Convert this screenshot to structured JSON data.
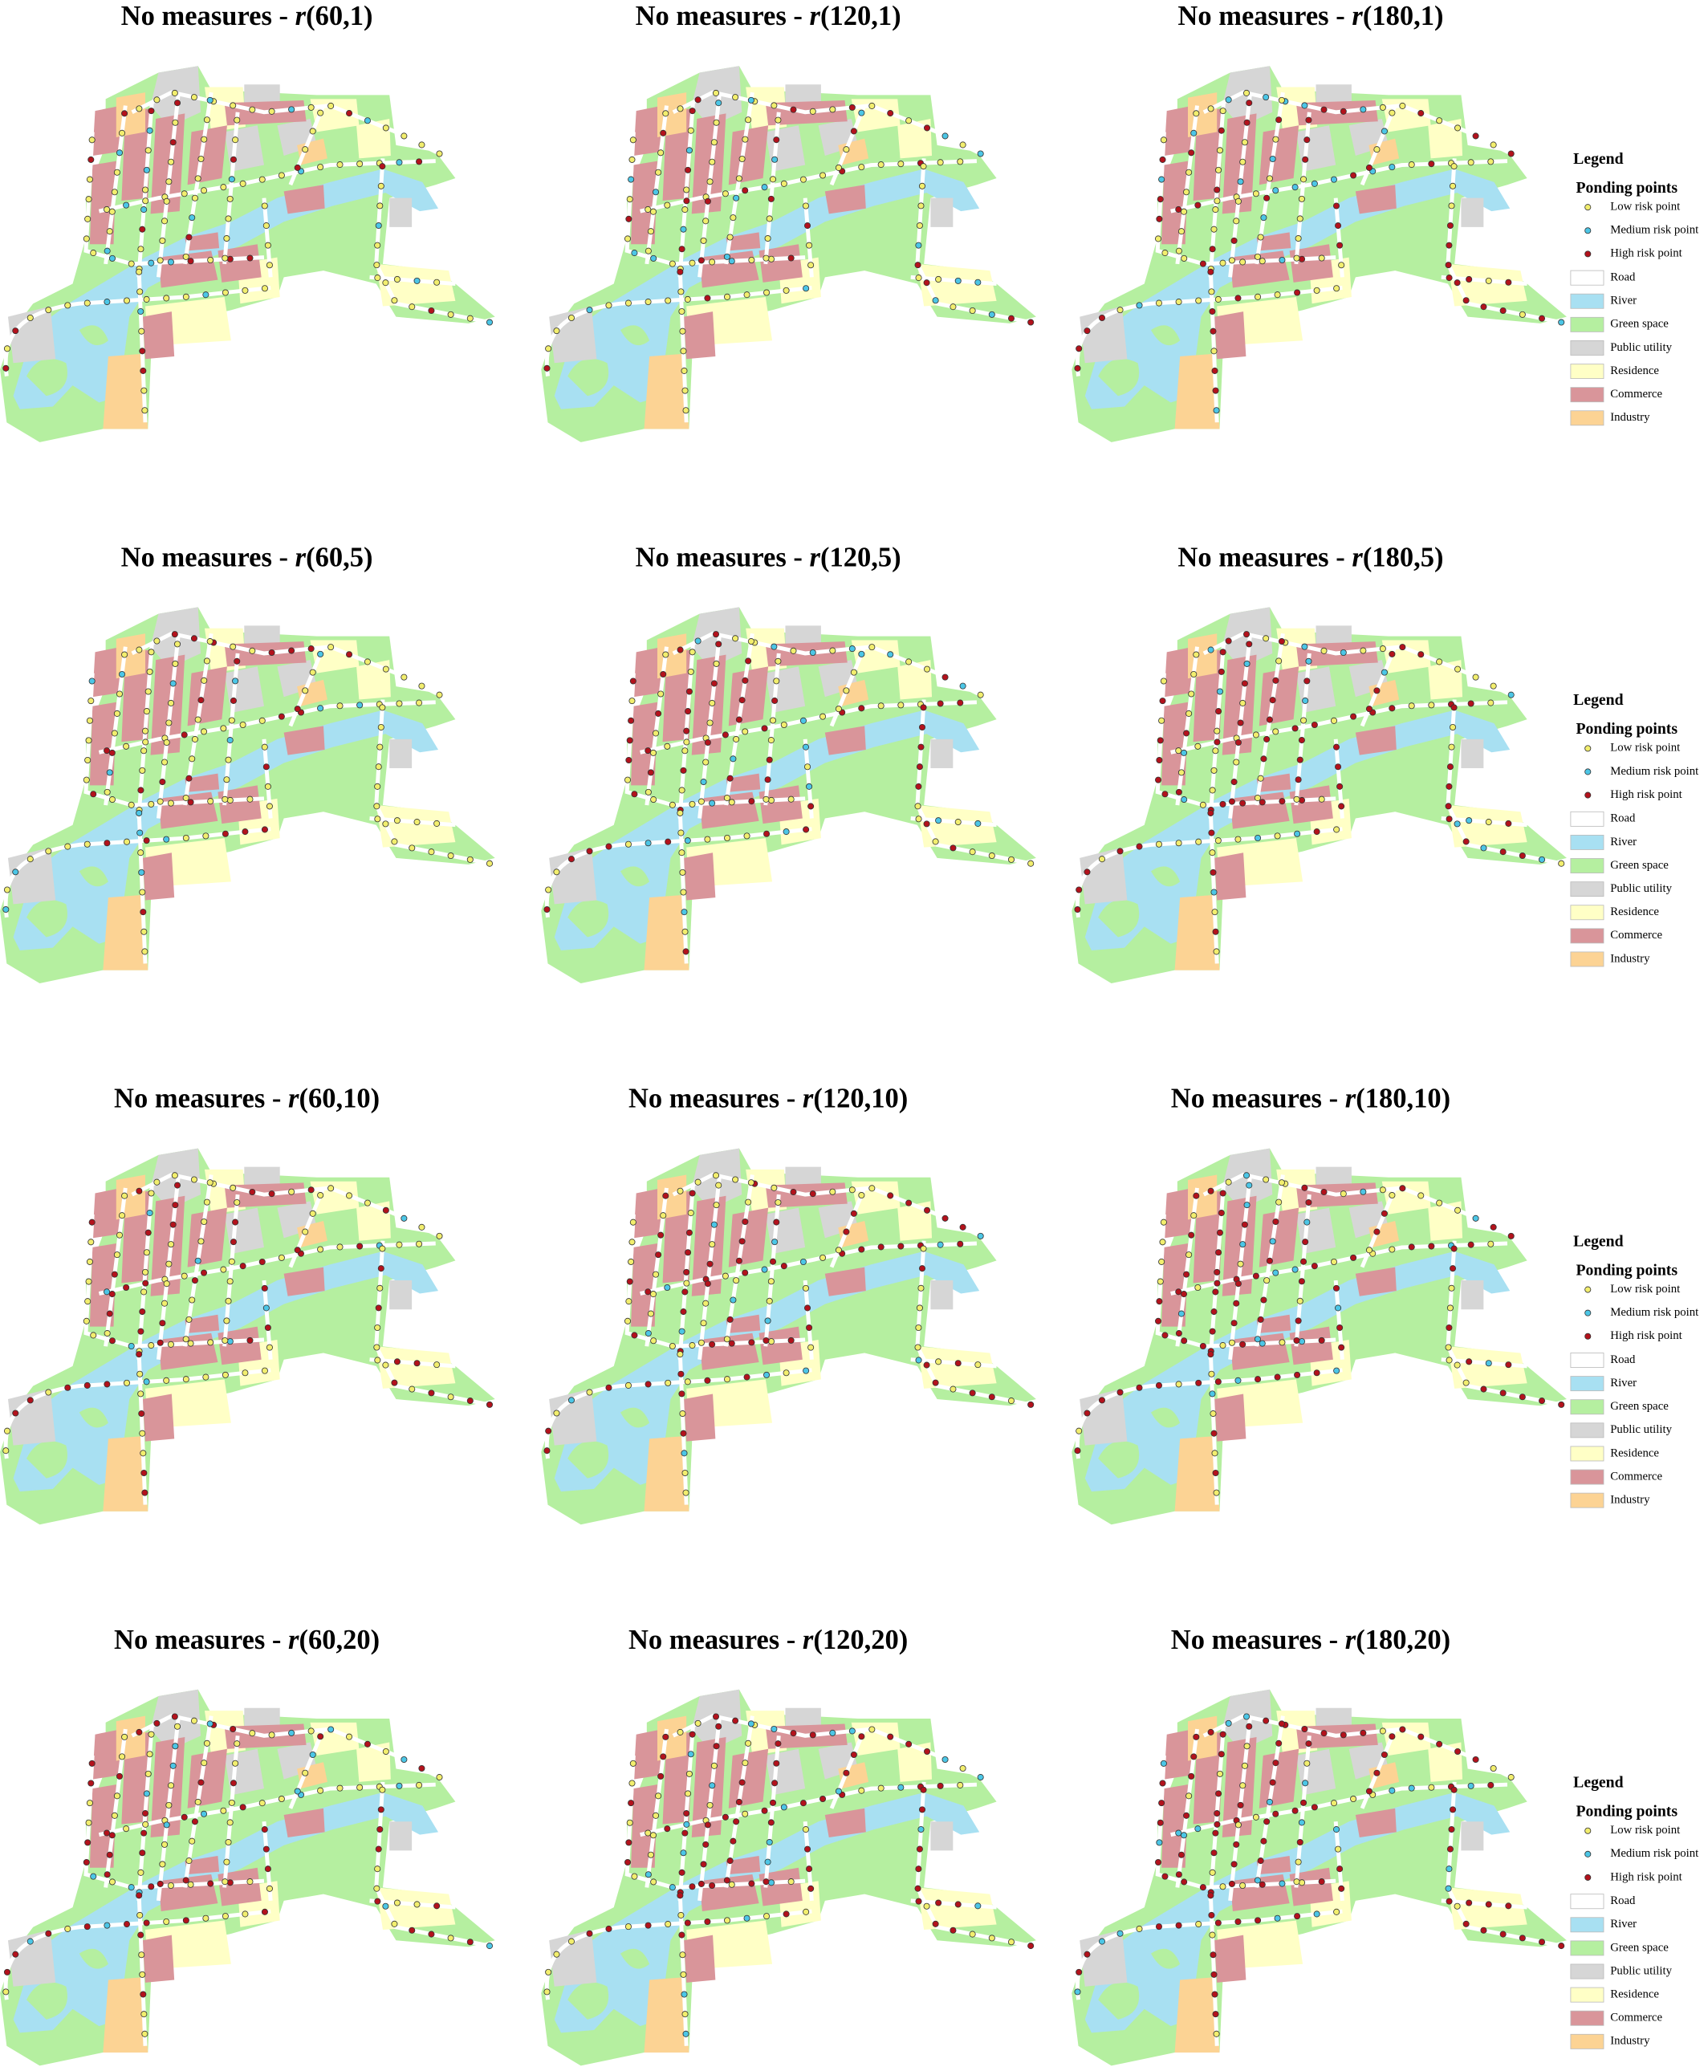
{
  "panels": [
    {
      "lead": "No measures - ",
      "italic": "r",
      "args": "(60,1)"
    },
    {
      "lead": "No measures - ",
      "italic": "r",
      "args": "(120,1)"
    },
    {
      "lead": "No measures - ",
      "italic": "r",
      "args": "(180,1)"
    },
    {
      "lead": "No measures - ",
      "italic": "r",
      "args": "(60,5)"
    },
    {
      "lead": "No measures - ",
      "italic": "r",
      "args": "(120,5)"
    },
    {
      "lead": "No measures - ",
      "italic": "r",
      "args": "(180,5)"
    },
    {
      "lead": "No measures - ",
      "italic": "r",
      "args": "(60,10)"
    },
    {
      "lead": "No measures - ",
      "italic": "r",
      "args": "(120,10)"
    },
    {
      "lead": "No measures - ",
      "italic": "r",
      "args": "(180,10)"
    },
    {
      "lead": "No measures - ",
      "italic": "r",
      "args": "(60,20)"
    },
    {
      "lead": "No measures - ",
      "italic": "r",
      "args": "(120,20)"
    },
    {
      "lead": "No measures - ",
      "italic": "r",
      "args": "(180,20)"
    }
  ],
  "legends": [
    {
      "title": "Legend",
      "group": "Ponding points",
      "points": [
        {
          "label": "Low risk point",
          "color": "#f2ee6e"
        },
        {
          "label": "Medium risk point",
          "color": "#4cc6e6"
        },
        {
          "label": "High risk point",
          "color": "#b3121c"
        }
      ],
      "areas": [
        {
          "label": "Road",
          "color": "#ffffff"
        },
        {
          "label": "River",
          "color": "#a8e0f2"
        },
        {
          "label": "Green space",
          "color": "#b5efa0"
        },
        {
          "label": "Public utility",
          "color": "#d6d6d6"
        },
        {
          "label": "Residence",
          "color": "#ffffc6"
        },
        {
          "label": "Commerce",
          "color": "#d9959a"
        },
        {
          "label": "Industry",
          "color": "#fcd394"
        }
      ]
    },
    {
      "title": "Legend",
      "group": "Ponding points",
      "points": [
        {
          "label": "Low risk point",
          "color": "#f2ee6e"
        },
        {
          "label": "Medium risk point",
          "color": "#4cc6e6"
        },
        {
          "label": "High risk point",
          "color": "#b3121c"
        }
      ],
      "areas": [
        {
          "label": "Road",
          "color": "#ffffff"
        },
        {
          "label": "River",
          "color": "#a8e0f2"
        },
        {
          "label": "Green space",
          "color": "#b5efa0"
        },
        {
          "label": "Public utility",
          "color": "#d6d6d6"
        },
        {
          "label": "Residence",
          "color": "#ffffc6"
        },
        {
          "label": "Commerce",
          "color": "#d9959a"
        },
        {
          "label": "Industry",
          "color": "#fcd394"
        }
      ]
    },
    {
      "title": "Legend",
      "group": "Ponding points",
      "points": [
        {
          "label": "Low risk point",
          "color": "#f2ee6e"
        },
        {
          "label": "Medium risk point",
          "color": "#4cc6e6"
        },
        {
          "label": "High risk point",
          "color": "#b3121c"
        }
      ],
      "areas": [
        {
          "label": "Road",
          "color": "#ffffff"
        },
        {
          "label": "River",
          "color": "#a8e0f2"
        },
        {
          "label": "Green space",
          "color": "#b5efa0"
        },
        {
          "label": "Public utility",
          "color": "#d6d6d6"
        },
        {
          "label": "Residence",
          "color": "#ffffc6"
        },
        {
          "label": "Commerce",
          "color": "#d9959a"
        },
        {
          "label": "Industry",
          "color": "#fcd394"
        }
      ]
    },
    {
      "title": "Legend",
      "group": "Ponding points",
      "points": [
        {
          "label": "Low risk point",
          "color": "#f2ee6e"
        },
        {
          "label": "Medium risk point",
          "color": "#4cc6e6"
        },
        {
          "label": "High risk point",
          "color": "#b3121c"
        }
      ],
      "areas": [
        {
          "label": "Road",
          "color": "#ffffff"
        },
        {
          "label": "River",
          "color": "#a8e0f2"
        },
        {
          "label": "Green space",
          "color": "#b5efa0"
        },
        {
          "label": "Public utility",
          "color": "#d6d6d6"
        },
        {
          "label": "Residence",
          "color": "#ffffc6"
        },
        {
          "label": "Commerce",
          "color": "#d9959a"
        },
        {
          "label": "Industry",
          "color": "#fcd394"
        }
      ]
    }
  ]
}
